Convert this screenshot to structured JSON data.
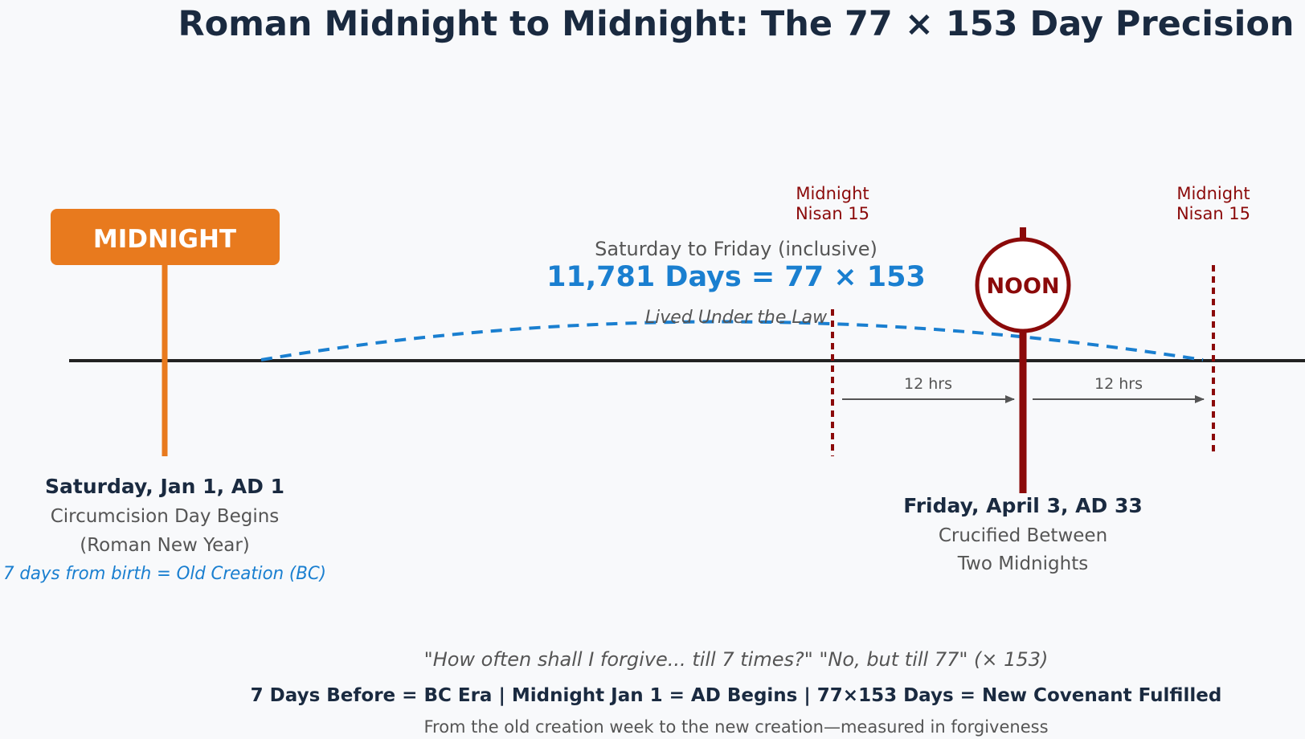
{
  "title": "Roman Midnight to Midnight: The 77 × 153 Day Precision",
  "colors": {
    "background": "#f8f9fb",
    "title": "#1a2a40",
    "timeline": "#222222",
    "midnight_orange": "#e87a1e",
    "noon_red": "#8b0a0a",
    "blue": "#1a7fd0",
    "gray_text": "#555555",
    "arrow_gray": "#555555"
  },
  "midnight_box": {
    "label": "MIDNIGHT"
  },
  "start_event": {
    "date": "Saturday, Jan 1, AD 1",
    "line1": "Circumcision Day Begins",
    "line2": "(Roman New Year)",
    "note": "7 days from birth = Old Creation (BC)"
  },
  "span": {
    "caption": "Saturday to Friday (inclusive)",
    "value": "11,781 Days = 77 × 153",
    "note": "Lived Under the Law"
  },
  "midnight_left": {
    "line1": "Midnight",
    "line2": "Nisan 15"
  },
  "midnight_right": {
    "line1": "Midnight",
    "line2": "Nisan 15"
  },
  "noon": {
    "label": "NOON"
  },
  "intervals": {
    "left": "12 hrs",
    "right": "12 hrs"
  },
  "end_event": {
    "date": "Friday, April 3, AD 33",
    "line1": "Crucified Between",
    "line2": "Two Midnights"
  },
  "footer": {
    "quote": "\"How often shall I forgive... till 7 times?\" \"No, but till 77\" (× 153)",
    "summary": "7 Days Before = BC Era | Midnight Jan 1 = AD Begins | 77×153 Days = New Covenant Fulfilled",
    "tagline": "From the old creation week to the new creation—measured in forgiveness"
  }
}
